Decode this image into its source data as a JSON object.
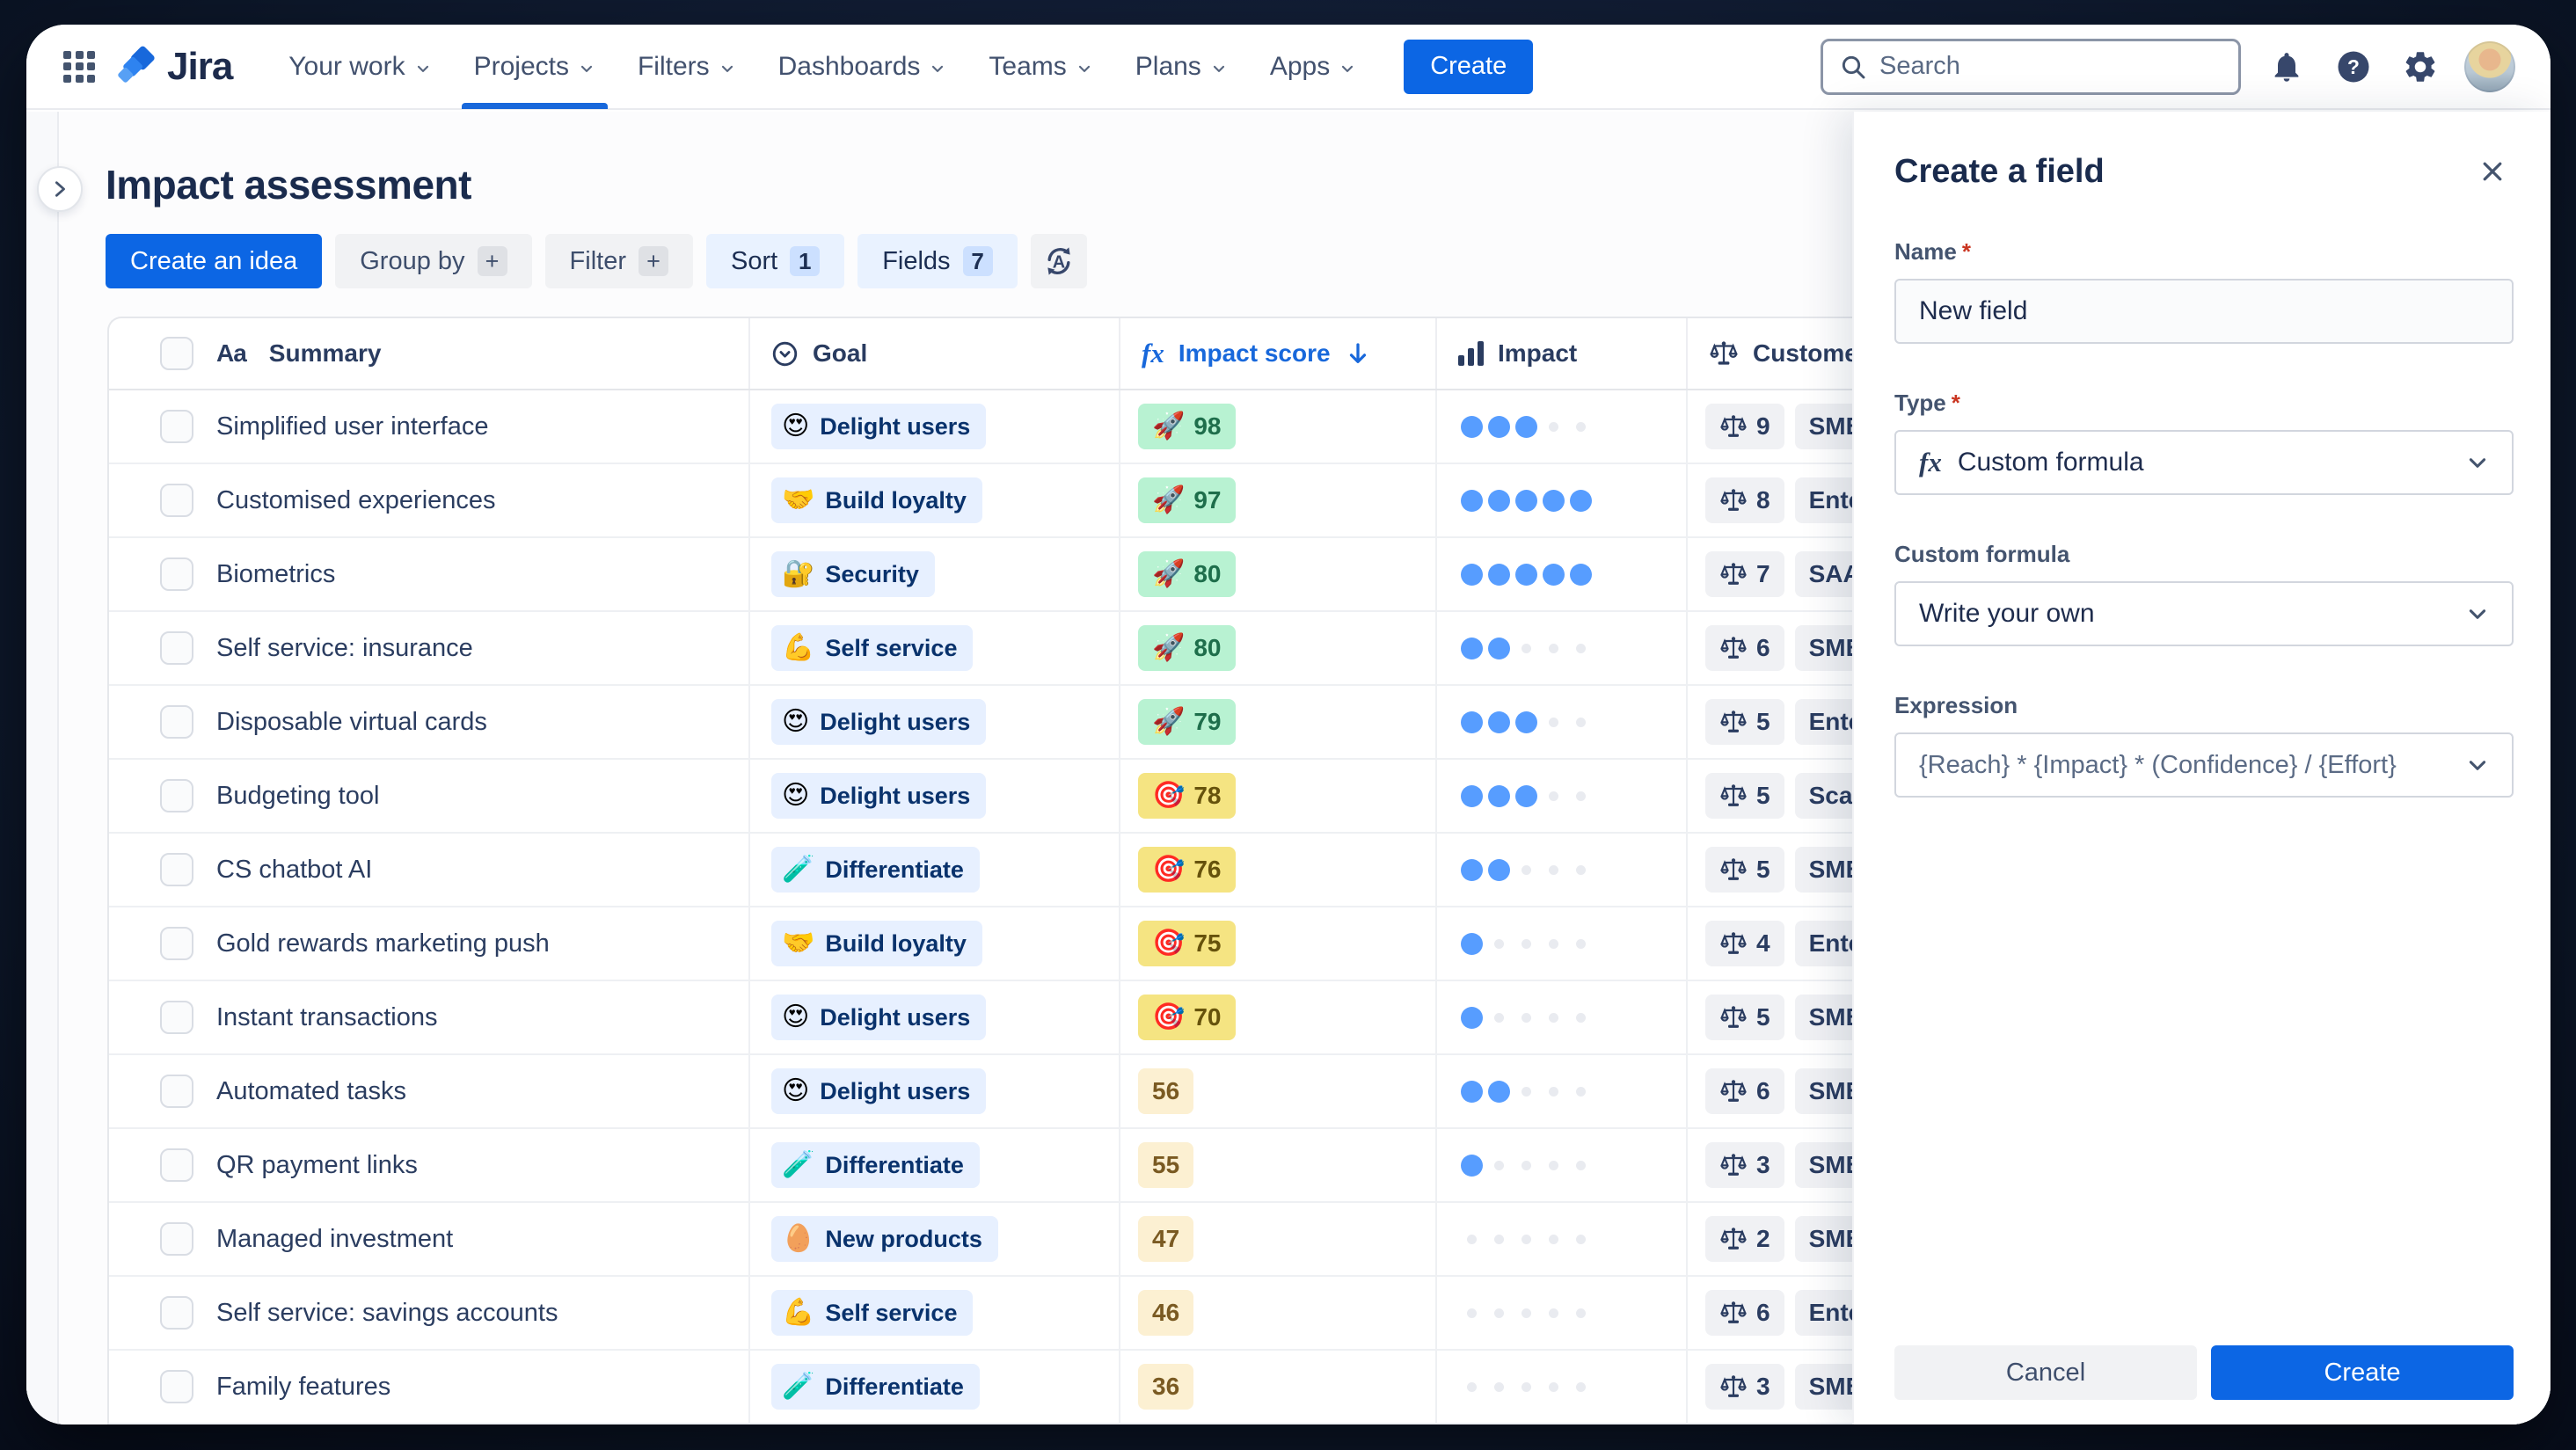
{
  "nav": {
    "logo_text": "Jira",
    "items": [
      {
        "label": "Your work",
        "active": false
      },
      {
        "label": "Projects",
        "active": true
      },
      {
        "label": "Filters",
        "active": false
      },
      {
        "label": "Dashboards",
        "active": false
      },
      {
        "label": "Teams",
        "active": false
      },
      {
        "label": "Plans",
        "active": false
      },
      {
        "label": "Apps",
        "active": false
      }
    ],
    "create_label": "Create",
    "search_placeholder": "Search"
  },
  "page": {
    "title": "Impact assessment",
    "toolbar": {
      "create_idea": "Create an idea",
      "group_by": "Group by",
      "group_by_icon": "+",
      "filter": "Filter",
      "filter_icon": "+",
      "sort": "Sort",
      "sort_count": "1",
      "fields": "Fields",
      "fields_count": "7"
    }
  },
  "table": {
    "headers": {
      "summary_icon": "Aa",
      "summary": "Summary",
      "goal": "Goal",
      "impact_score_icon": "fx",
      "impact_score": "Impact score",
      "impact_score_sort": "descending",
      "impact": "Impact",
      "customer": "Customer segment"
    },
    "rows": [
      {
        "summary": "Simplified user interface",
        "goal_emoji": "😍",
        "goal": "Delight users",
        "score_emoji": "🚀",
        "score": "98",
        "tier": "green",
        "dots": 3,
        "customer_count": "9",
        "segment": "SMB"
      },
      {
        "summary": "Customised experiences",
        "goal_emoji": "🤝",
        "goal": "Build loyalty",
        "score_emoji": "🚀",
        "score": "97",
        "tier": "green",
        "dots": 5,
        "customer_count": "8",
        "segment": "Enterprise"
      },
      {
        "summary": "Biometrics",
        "goal_emoji": "🔐",
        "goal": "Security",
        "score_emoji": "🚀",
        "score": "80",
        "tier": "green",
        "dots": 5,
        "customer_count": "7",
        "segment": "SAAS"
      },
      {
        "summary": "Self service: insurance",
        "goal_emoji": "💪",
        "goal": "Self service",
        "score_emoji": "🚀",
        "score": "80",
        "tier": "green",
        "dots": 2,
        "customer_count": "6",
        "segment": "SMB"
      },
      {
        "summary": "Disposable virtual cards",
        "goal_emoji": "😍",
        "goal": "Delight users",
        "score_emoji": "🚀",
        "score": "79",
        "tier": "green",
        "dots": 3,
        "customer_count": "5",
        "segment": "Enterprise"
      },
      {
        "summary": "Budgeting tool",
        "goal_emoji": "😍",
        "goal": "Delight users",
        "score_emoji": "🎯",
        "score": "78",
        "tier": "yellow",
        "dots": 3,
        "customer_count": "5",
        "segment": "Scaleups"
      },
      {
        "summary": "CS chatbot AI",
        "goal_emoji": "🧪",
        "goal": "Differentiate",
        "score_emoji": "🎯",
        "score": "76",
        "tier": "yellow",
        "dots": 2,
        "customer_count": "5",
        "segment": "SMB"
      },
      {
        "summary": "Gold rewards marketing push",
        "goal_emoji": "🤝",
        "goal": "Build loyalty",
        "score_emoji": "🎯",
        "score": "75",
        "tier": "yellow",
        "dots": 1,
        "customer_count": "4",
        "segment": "Enterprise"
      },
      {
        "summary": "Instant transactions",
        "goal_emoji": "😍",
        "goal": "Delight users",
        "score_emoji": "🎯",
        "score": "70",
        "tier": "yellow",
        "dots": 1,
        "customer_count": "5",
        "segment": "SMB"
      },
      {
        "summary": "Automated tasks",
        "goal_emoji": "😍",
        "goal": "Delight users",
        "score_emoji": "",
        "score": "56",
        "tier": "plain",
        "dots": 2,
        "customer_count": "6",
        "segment": "SMB"
      },
      {
        "summary": "QR payment links",
        "goal_emoji": "🧪",
        "goal": "Differentiate",
        "score_emoji": "",
        "score": "55",
        "tier": "plain",
        "dots": 1,
        "customer_count": "3",
        "segment": "SMB"
      },
      {
        "summary": "Managed investment",
        "goal_emoji": "🥚",
        "goal": "New products",
        "score_emoji": "",
        "score": "47",
        "tier": "plain",
        "dots": 0,
        "customer_count": "2",
        "segment": "SMB"
      },
      {
        "summary": "Self service: savings accounts",
        "goal_emoji": "💪",
        "goal": "Self service",
        "score_emoji": "",
        "score": "46",
        "tier": "plain",
        "dots": 0,
        "customer_count": "6",
        "segment": "Enterprise"
      },
      {
        "summary": "Family features",
        "goal_emoji": "🧪",
        "goal": "Differentiate",
        "score_emoji": "",
        "score": "36",
        "tier": "plain",
        "dots": 0,
        "customer_count": "3",
        "segment": "SMB"
      }
    ],
    "dots_max": 5
  },
  "panel": {
    "title": "Create a field",
    "name_label": "Name",
    "name_value": "New field",
    "type_label": "Type",
    "type_icon": "fx",
    "type_value": "Custom formula",
    "custom_formula_label": "Custom formula",
    "custom_formula_value": "Write your own",
    "expression_label": "Expression",
    "expression_value": "{Reach} * {Impact} * (Confidence} / {Effort}",
    "cancel_label": "Cancel",
    "create_label": "Create"
  },
  "colors": {
    "brand_blue": "#0C66E4",
    "link_blue": "#1868DB",
    "text_navy": "#1A2B4D",
    "goal_pill_bg": "#E7F0FF",
    "goal_pill_text": "#09326C",
    "score_green_bg": "#B8F2D2",
    "score_green_text": "#1E6E4B",
    "score_yellow_bg": "#F5E482",
    "score_yellow_text": "#66520C",
    "score_plain_bg": "#FCF0D2",
    "impact_dot_filled": "#579DFF",
    "impact_dot_empty": "#E9EBF0",
    "neutral_pill_bg": "#F0F1F4",
    "required_red": "#CA3521"
  }
}
